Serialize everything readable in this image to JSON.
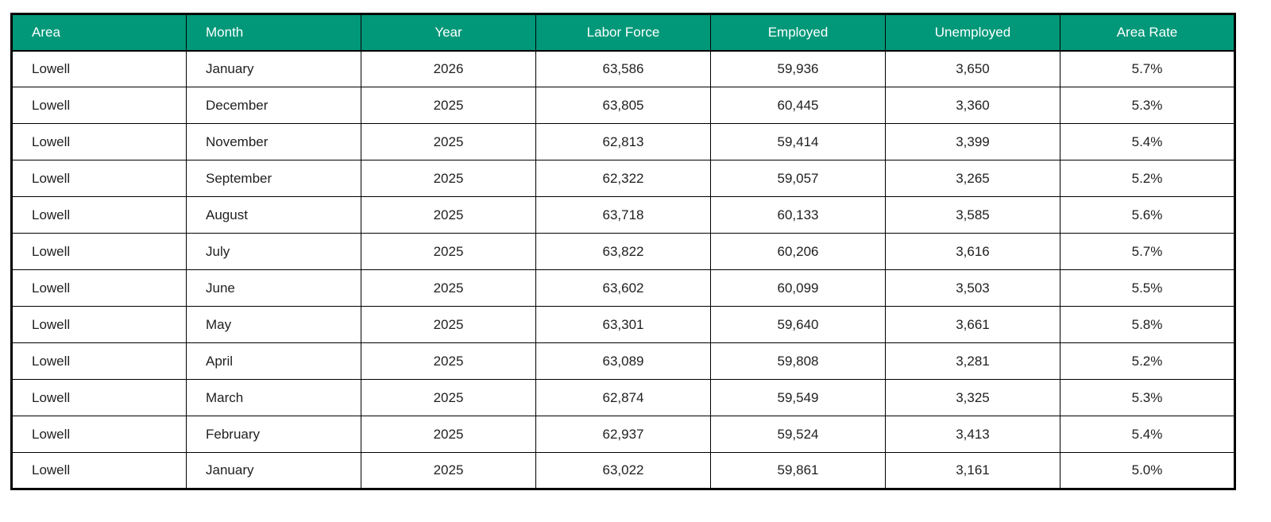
{
  "colors": {
    "header_bg": "#009879",
    "header_text": "#ffffff",
    "border": "#000000",
    "cell_text": "#1f1f1f",
    "page_bg": "#ffffff"
  },
  "table": {
    "column_keys": [
      "area",
      "month",
      "year",
      "labor-force",
      "employed",
      "unemployed",
      "area-rate"
    ]
  },
  "chart_data": {
    "type": "table",
    "title": "",
    "columns": [
      "Area",
      "Month",
      "Year",
      "Labor Force",
      "Employed",
      "Unemployed",
      "Area Rate"
    ],
    "rows": [
      [
        "Lowell",
        "January",
        "2026",
        "63,586",
        "59,936",
        "3,650",
        "5.7%"
      ],
      [
        "Lowell",
        "December",
        "2025",
        "63,805",
        "60,445",
        "3,360",
        "5.3%"
      ],
      [
        "Lowell",
        "November",
        "2025",
        "62,813",
        "59,414",
        "3,399",
        "5.4%"
      ],
      [
        "Lowell",
        "September",
        "2025",
        "62,322",
        "59,057",
        "3,265",
        "5.2%"
      ],
      [
        "Lowell",
        "August",
        "2025",
        "63,718",
        "60,133",
        "3,585",
        "5.6%"
      ],
      [
        "Lowell",
        "July",
        "2025",
        "63,822",
        "60,206",
        "3,616",
        "5.7%"
      ],
      [
        "Lowell",
        "June",
        "2025",
        "63,602",
        "60,099",
        "3,503",
        "5.5%"
      ],
      [
        "Lowell",
        "May",
        "2025",
        "63,301",
        "59,640",
        "3,661",
        "5.8%"
      ],
      [
        "Lowell",
        "April",
        "2025",
        "63,089",
        "59,808",
        "3,281",
        "5.2%"
      ],
      [
        "Lowell",
        "March",
        "2025",
        "62,874",
        "59,549",
        "3,325",
        "5.3%"
      ],
      [
        "Lowell",
        "February",
        "2025",
        "62,937",
        "59,524",
        "3,413",
        "5.4%"
      ],
      [
        "Lowell",
        "January",
        "2025",
        "63,022",
        "59,861",
        "3,161",
        "5.0%"
      ]
    ]
  }
}
